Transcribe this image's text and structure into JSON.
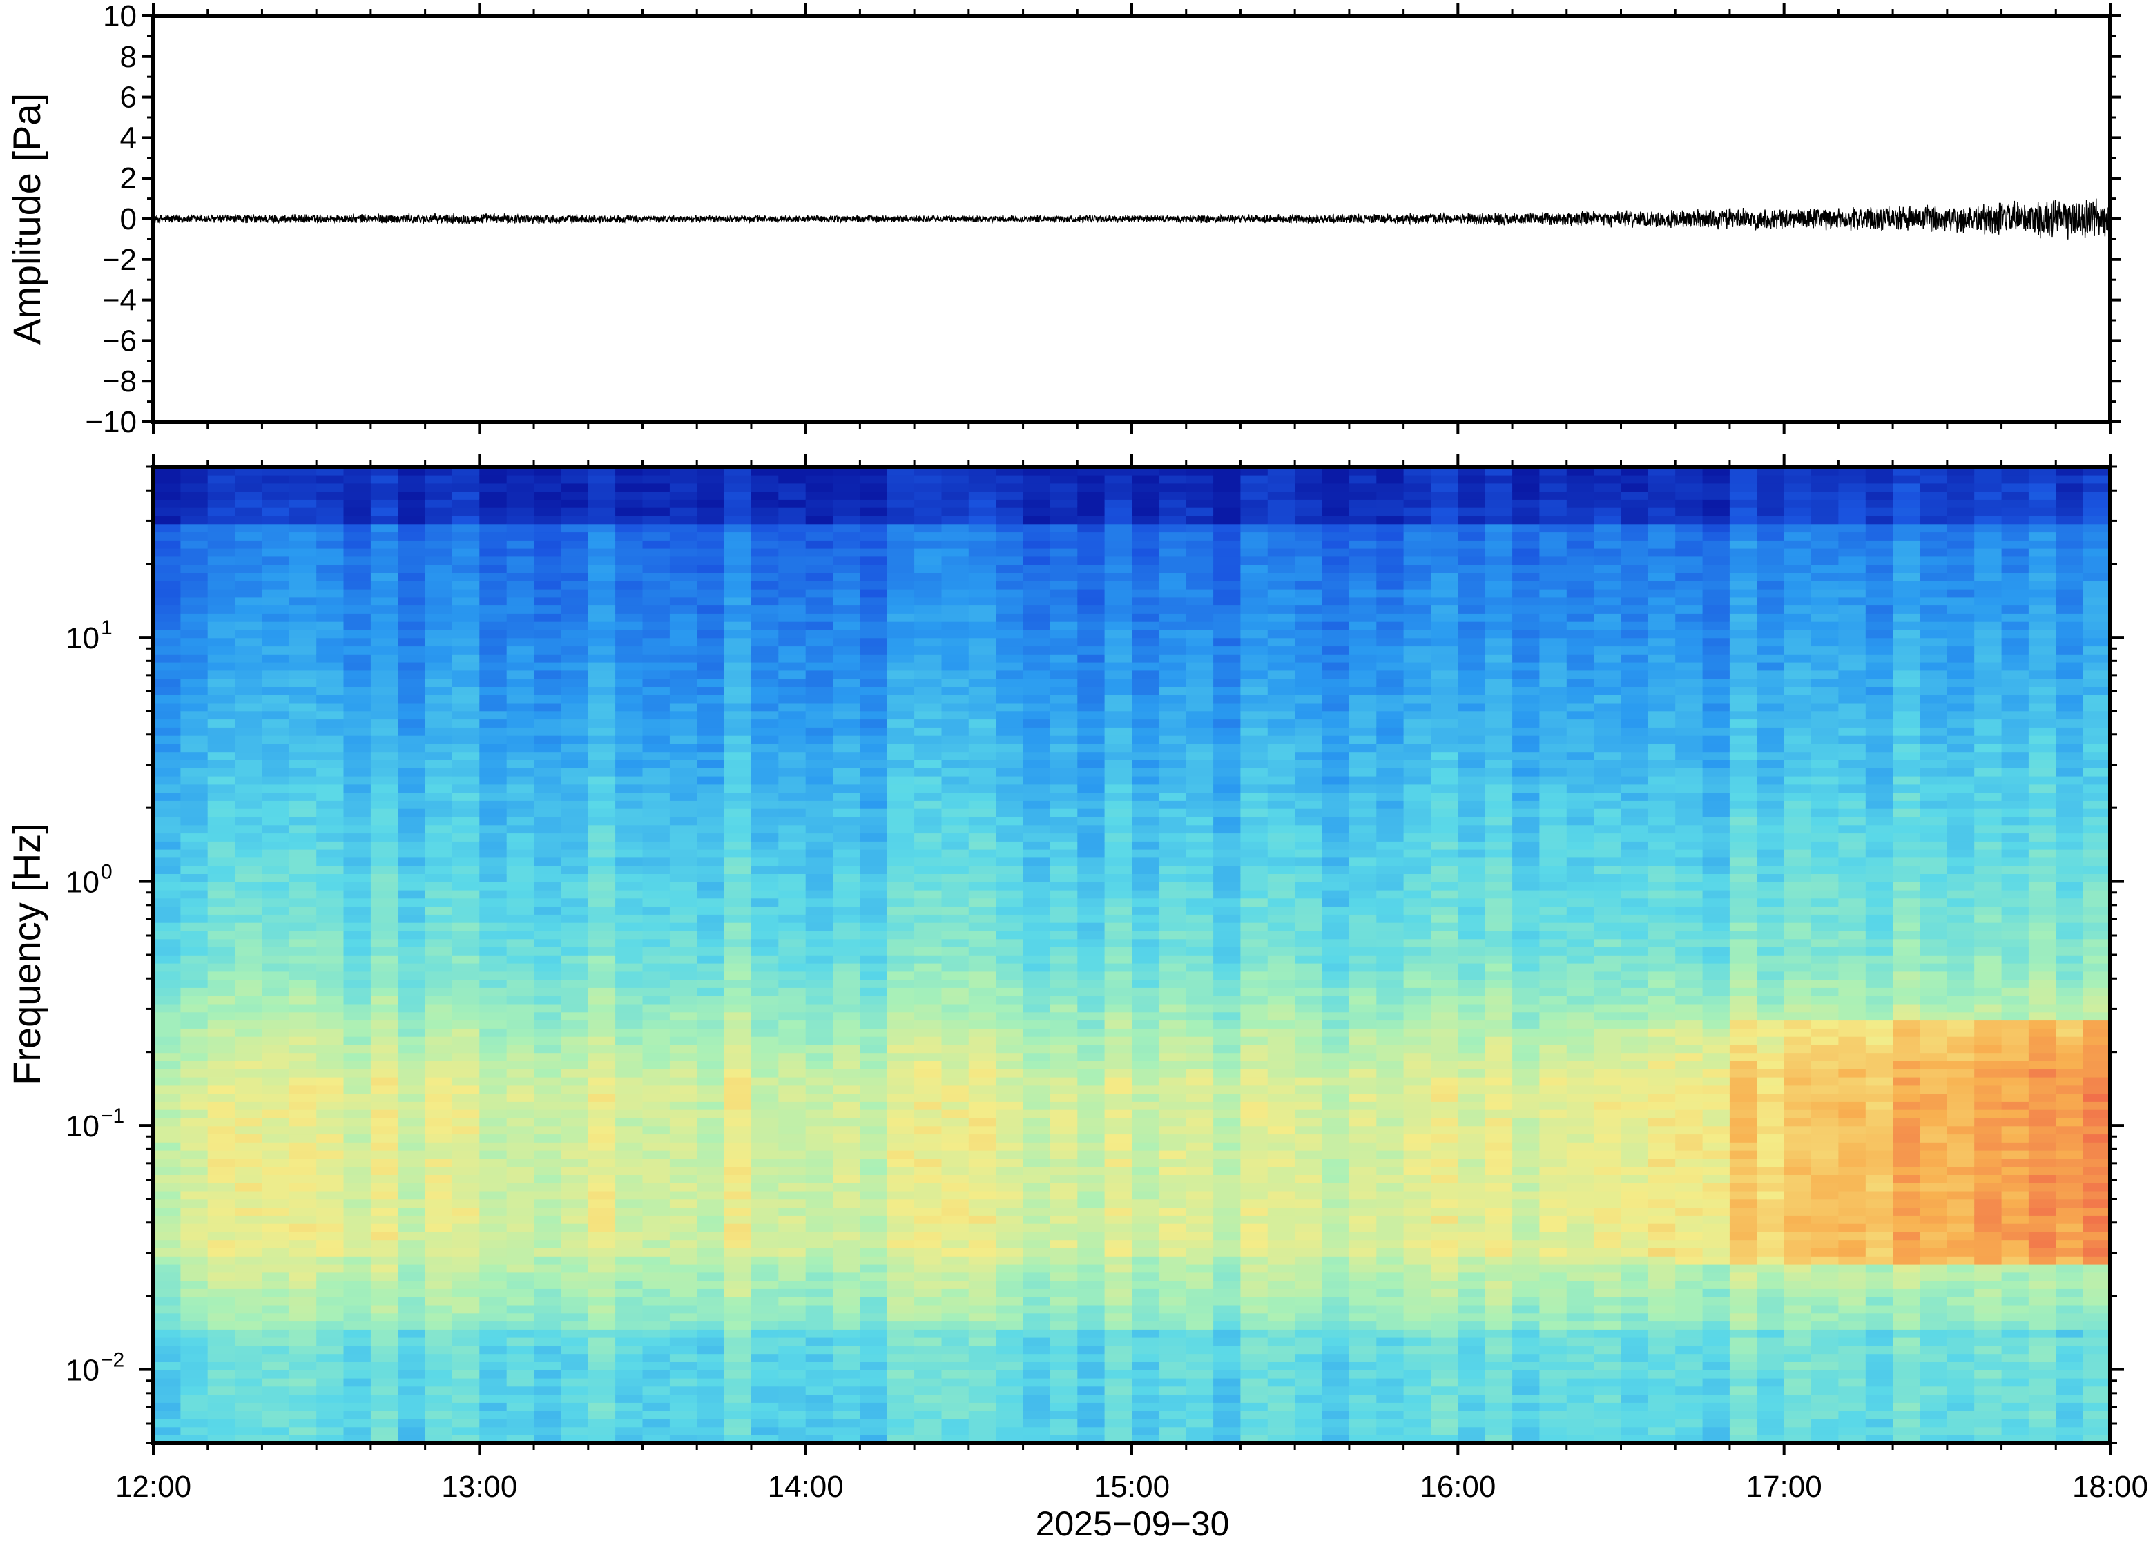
{
  "chart_data": [
    {
      "type": "line",
      "panel": "waveform",
      "ylabel": "Amplitude [Pa]",
      "ylim": [
        -10,
        10
      ],
      "y_ticks": [
        -10,
        -8,
        -6,
        -4,
        -2,
        0,
        2,
        4,
        6,
        8,
        10
      ],
      "y_tick_labels": [
        "−10",
        "−8",
        "−6",
        "−4",
        "−2",
        "0",
        "2",
        "4",
        "6",
        "8",
        "10"
      ],
      "x_range": [
        "12:00",
        "18:00"
      ],
      "series": [
        {
          "x_hours": [
            12.0,
            12.5,
            13.0,
            13.5,
            14.0,
            14.5,
            15.0,
            15.5,
            16.0,
            16.25,
            16.5,
            16.75,
            17.0,
            17.25,
            17.5,
            17.75,
            18.0
          ],
          "envelope_pa": [
            0.25,
            0.25,
            0.3,
            0.2,
            0.2,
            0.2,
            0.2,
            0.25,
            0.3,
            0.35,
            0.45,
            0.55,
            0.6,
            0.65,
            0.8,
            1.0,
            1.2
          ],
          "color": "#000000"
        }
      ]
    },
    {
      "type": "heatmap",
      "panel": "spectrogram",
      "ylabel": "Frequency [Hz]",
      "y_scale": "log",
      "ylim_hz": [
        0.005,
        50
      ],
      "y_ticks": [
        {
          "base": "10",
          "exp": "1",
          "value": 10
        },
        {
          "base": "10",
          "exp": "0",
          "value": 1
        },
        {
          "base": "10",
          "exp": "−1",
          "value": 0.1
        },
        {
          "base": "10",
          "exp": "−2",
          "value": 0.01
        }
      ],
      "colormap": [
        "#0a1aa6",
        "#1a55e0",
        "#2a9af0",
        "#5ad8e8",
        "#a8f0b8",
        "#f4ec88",
        "#f8b050",
        "#ee5a48"
      ],
      "x_ticks": [
        "12:00",
        "13:00",
        "14:00",
        "15:00",
        "16:00",
        "17:00",
        "18:00"
      ],
      "xlabel": "2025−09−30",
      "grid": false
    }
  ]
}
